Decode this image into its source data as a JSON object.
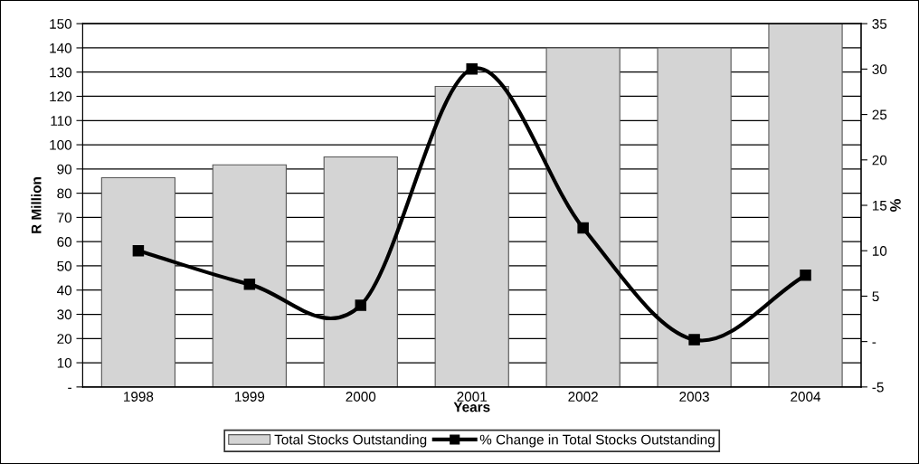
{
  "chart_data": {
    "type": "bar",
    "categories": [
      "1998",
      "1999",
      "2000",
      "2001",
      "2002",
      "2003",
      "2004"
    ],
    "xlabel": "Years",
    "ylabel": "R Million",
    "y2label": "%",
    "series": [
      {
        "name": "Total Stocks Outstanding",
        "color": "#d4d4d4",
        "values": [
          86.4,
          91.7,
          95,
          124.1,
          140,
          140,
          150
        ]
      },
      {
        "name": "% Change in Total Stocks Outstanding",
        "type": "line",
        "axis": "y2",
        "color": "#000000",
        "marker": "square",
        "values": [
          10,
          6.3,
          4,
          30,
          12.5,
          0.2,
          7.3
        ]
      }
    ],
    "ylim": [
      0,
      150
    ],
    "yticks": [
      {
        "value": 0,
        "label": "-"
      },
      10,
      20,
      30,
      40,
      50,
      60,
      70,
      80,
      90,
      100,
      110,
      120,
      130,
      140,
      150
    ],
    "y2lim": [
      -5,
      35
    ],
    "y2ticks": [
      -5,
      {
        "value": 0,
        "label": "-"
      },
      5,
      10,
      15,
      20,
      25,
      30,
      35
    ],
    "grid": "y",
    "legend": "bottom"
  }
}
